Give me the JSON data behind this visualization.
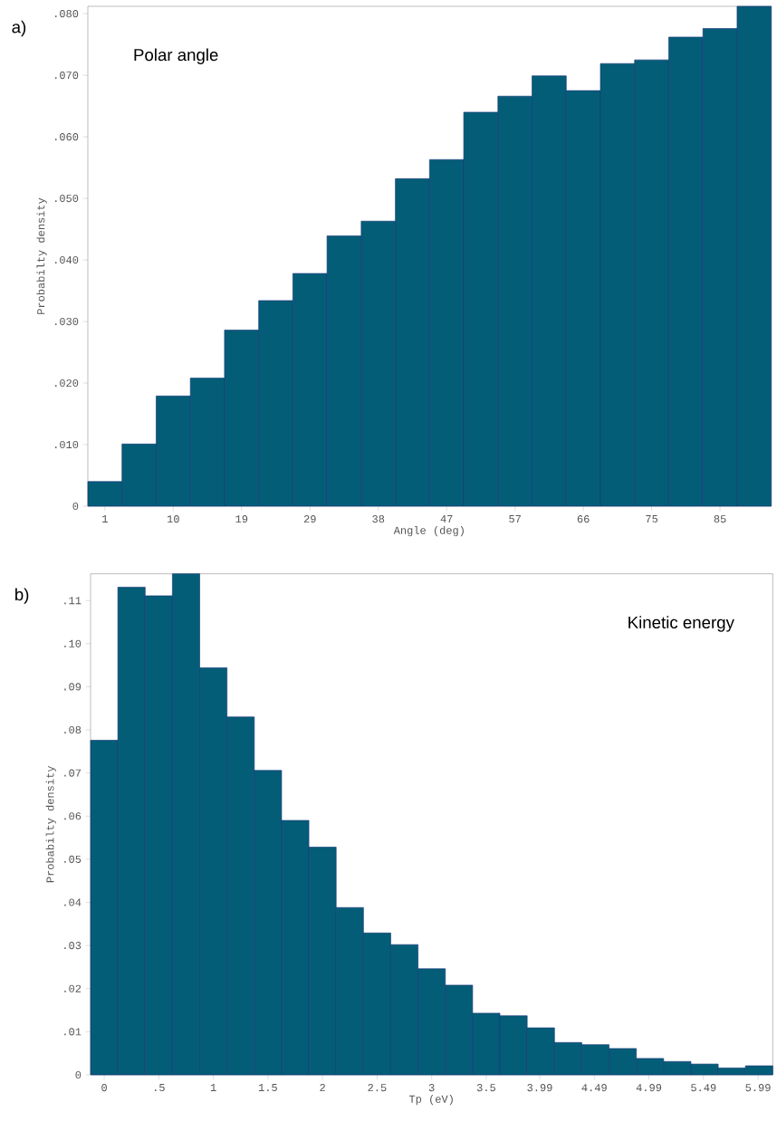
{
  "chart_data": [
    {
      "type": "histogram",
      "title": "Polar angle",
      "xlabel": "Angle (deg)",
      "ylabel": "Probabilty density",
      "annotations": [
        "a)"
      ],
      "color": "#045d77",
      "bins": [
        -1.58,
        3.08,
        7.74,
        12.4,
        17.06,
        21.72,
        26.38,
        31.04,
        35.7,
        40.36,
        45.02,
        49.68,
        54.34,
        59,
        63.66,
        68.32,
        72.98,
        77.64,
        82.3,
        86.96,
        91.62
      ],
      "values": [
        0.004,
        0.0101,
        0.0179,
        0.0208,
        0.0286,
        0.0334,
        0.0378,
        0.0439,
        0.0463,
        0.0532,
        0.0563,
        0.064,
        0.0666,
        0.0699,
        0.0675,
        0.0719,
        0.0725,
        0.0762,
        0.0776,
        0.0812
      ],
      "xlim": [
        -1.58,
        91.62
      ],
      "ylim": [
        0,
        0.0812
      ],
      "xticks": [
        {
          "value": 0.75,
          "label": "1"
        },
        {
          "value": 10.07,
          "label": "10"
        },
        {
          "value": 19.39,
          "label": "19"
        },
        {
          "value": 28.71,
          "label": "29"
        },
        {
          "value": 38.03,
          "label": "38"
        },
        {
          "value": 47.35,
          "label": "47"
        },
        {
          "value": 56.67,
          "label": "57"
        },
        {
          "value": 65.99,
          "label": "66"
        },
        {
          "value": 75.31,
          "label": "75"
        },
        {
          "value": 84.63,
          "label": "85"
        }
      ],
      "yticks": [
        0,
        {
          "value": 0.01,
          "label": ".010"
        },
        {
          "value": 0.02,
          "label": ".020"
        },
        {
          "value": 0.03,
          "label": ".030"
        },
        {
          "value": 0.04,
          "label": ".040"
        },
        {
          "value": 0.05,
          "label": ".050"
        },
        {
          "value": 0.06,
          "label": ".060"
        },
        {
          "value": 0.07,
          "label": ".070"
        },
        {
          "value": 0.08,
          "label": ".080"
        }
      ]
    },
    {
      "type": "histogram",
      "title": "Kinetic energy",
      "xlabel": "Tp (eV)",
      "ylabel": "Probabilty density",
      "annotations": [
        "b)"
      ],
      "color": "#045d77",
      "bins": [
        -0.125,
        0.125,
        0.375,
        0.625,
        0.875,
        1.125,
        1.375,
        1.625,
        1.875,
        2.125,
        2.375,
        2.625,
        2.875,
        3.125,
        3.375,
        3.625,
        3.875,
        4.125,
        4.375,
        4.625,
        4.875,
        5.125,
        5.375,
        5.625,
        5.875,
        6.125
      ],
      "values": [
        0.0776,
        0.1131,
        0.1111,
        0.1162,
        0.0944,
        0.083,
        0.0706,
        0.059,
        0.0528,
        0.0388,
        0.0329,
        0.0302,
        0.0246,
        0.0208,
        0.0143,
        0.0137,
        0.0109,
        0.0075,
        0.007,
        0.0061,
        0.0038,
        0.0031,
        0.0025,
        0.0016,
        0.0021
      ],
      "xlim": [
        -0.125,
        6.125
      ],
      "ylim": [
        0,
        0.1162
      ],
      "xticks": [
        0,
        {
          "value": 0.5,
          "label": ".5"
        },
        1,
        1.5,
        2,
        2.5,
        3,
        3.5,
        3.99,
        4.49,
        4.99,
        5.49,
        5.99
      ],
      "yticks": [
        0,
        {
          "value": 0.01,
          "label": ".01"
        },
        {
          "value": 0.02,
          "label": ".02"
        },
        {
          "value": 0.03,
          "label": ".03"
        },
        {
          "value": 0.04,
          "label": ".04"
        },
        {
          "value": 0.05,
          "label": ".05"
        },
        {
          "value": 0.06,
          "label": ".06"
        },
        {
          "value": 0.07,
          "label": ".07"
        },
        {
          "value": 0.08,
          "label": ".08"
        },
        {
          "value": 0.09,
          "label": ".09"
        },
        {
          "value": 0.1,
          "label": ".10"
        },
        {
          "value": 0.11,
          "label": ".11"
        }
      ]
    }
  ]
}
